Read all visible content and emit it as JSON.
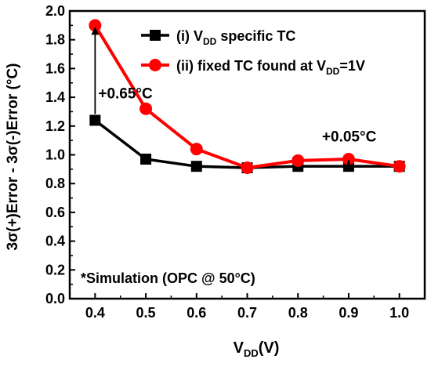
{
  "chart_data": {
    "type": "line",
    "title": "",
    "x": [
      0.4,
      0.5,
      0.6,
      0.7,
      0.8,
      0.9,
      1.0
    ],
    "xlim": [
      0.35,
      1.05
    ],
    "ylim": [
      0.0,
      2.0
    ],
    "x_ticks": [
      "0.4",
      "0.5",
      "0.6",
      "0.7",
      "0.8",
      "0.9",
      "1.0"
    ],
    "y_ticks": [
      "0.0",
      "0.2",
      "0.4",
      "0.6",
      "0.8",
      "1.0",
      "1.2",
      "1.4",
      "1.6",
      "1.8",
      "2.0"
    ],
    "xlabel": {
      "main": "V",
      "sub": "DD",
      "tail": "(V)"
    },
    "ylabel": "3σ(+)Error - 3σ(-)Error (°C)",
    "grid": false,
    "legend_position": "top-right",
    "series": [
      {
        "label_main": "(i) V",
        "label_sub": "DD",
        "label_tail": " specific TC",
        "color": "#000000",
        "marker": "square",
        "values": [
          1.24,
          0.97,
          0.92,
          0.91,
          0.92,
          0.92,
          0.92
        ]
      },
      {
        "label_main": "(ii) fixed TC found at V",
        "label_sub": "DD",
        "label_tail": "=1V",
        "color": "#ff0000",
        "marker": "circle",
        "values": [
          1.9,
          1.32,
          1.04,
          0.91,
          0.96,
          0.97,
          0.92
        ]
      }
    ],
    "annotations": [
      {
        "text": "+0.65°C",
        "x": 0.4,
        "y_from": 1.24,
        "y_to": 1.9,
        "label_x": 0.4,
        "label_y": 1.36
      },
      {
        "text": "+0.05°C",
        "x": 0.9,
        "y_from": 0.92,
        "y_to": 0.97,
        "label_x": 0.9,
        "label_y": 1.06
      }
    ],
    "note": "*Simulation (OPC @ 50°C)"
  }
}
